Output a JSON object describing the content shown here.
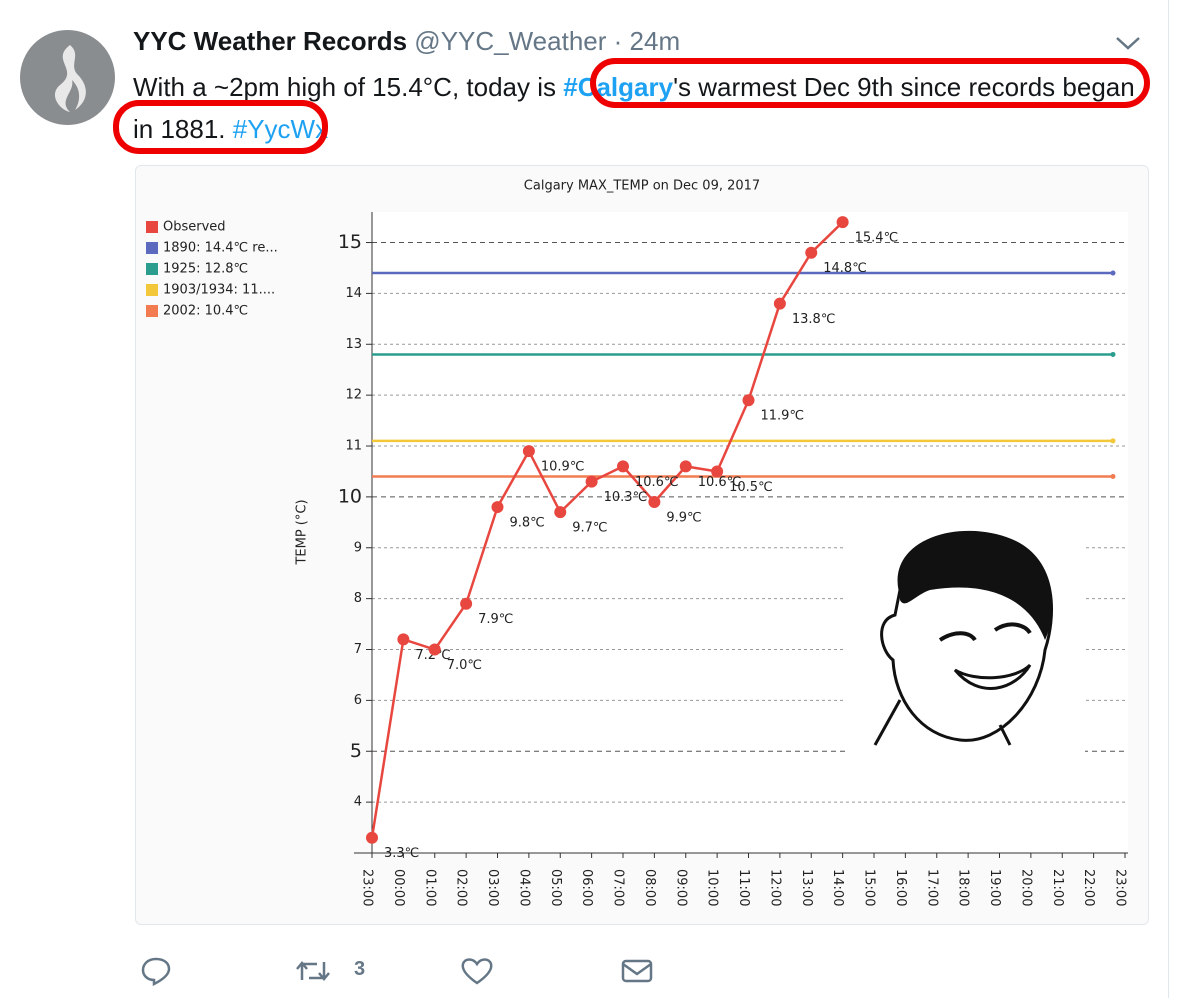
{
  "tweet": {
    "name": "YYC Weather Records",
    "handle": "@YYC_Weather",
    "time": "· 24m",
    "text": [
      "With a ~2pm high of 15.4°C, today is ",
      "#Calgary",
      "'s warmest Dec 9th since records began in 1881. ",
      "#YycWx"
    ],
    "retweets": "3"
  },
  "chart_data": {
    "type": "line",
    "title": "Calgary MAX_TEMP on Dec 09, 2017",
    "y_label": "TEMP (°C)",
    "categories": [
      "23:00",
      "00:00",
      "01:00",
      "02:00",
      "03:00",
      "04:00",
      "05:00",
      "06:00",
      "07:00",
      "08:00",
      "09:00",
      "10:00",
      "11:00",
      "12:00",
      "13:00",
      "14:00",
      "15:00",
      "16:00",
      "17:00",
      "18:00",
      "19:00",
      "20:00",
      "21:00",
      "22:00",
      "23:00"
    ],
    "series": [
      {
        "name": "Observed",
        "color": "#e8473f",
        "values": [
          3.3,
          7.2,
          7.0,
          7.9,
          9.8,
          10.9,
          9.7,
          10.3,
          10.6,
          9.9,
          10.6,
          10.5,
          11.9,
          13.8,
          14.8,
          15.4,
          null,
          null,
          null,
          null,
          null,
          null,
          null,
          null,
          null
        ],
        "value_labels": [
          "3.3℃",
          "7.2℃",
          "7.0℃",
          "7.9℃",
          "9.8℃",
          "10.9℃",
          "9.7℃",
          "10.3℃",
          "10.6℃",
          "9.9℃",
          "10.6℃",
          "10.5℃",
          "11.9℃",
          "13.8℃",
          "14.8℃",
          "15.4℃",
          null,
          null,
          null,
          null,
          null,
          null,
          null,
          null,
          null
        ]
      }
    ],
    "reference_lines": [
      {
        "name": "1890: 14.4℃ re...",
        "value": 14.4,
        "color": "#5b6abf"
      },
      {
        "name": "1925: 12.8℃",
        "value": 12.8,
        "color": "#2a9d8f"
      },
      {
        "name": "1903/1934: 11....",
        "value": 11.1,
        "color": "#f2c73a"
      },
      {
        "name": "2002: 10.4℃",
        "value": 10.4,
        "color": "#f27b50"
      }
    ],
    "ylim": [
      3.0,
      15.6
    ],
    "yticks": [
      4,
      5,
      6,
      7,
      8,
      9,
      10,
      11,
      12,
      13,
      14,
      15
    ],
    "grid": true
  }
}
